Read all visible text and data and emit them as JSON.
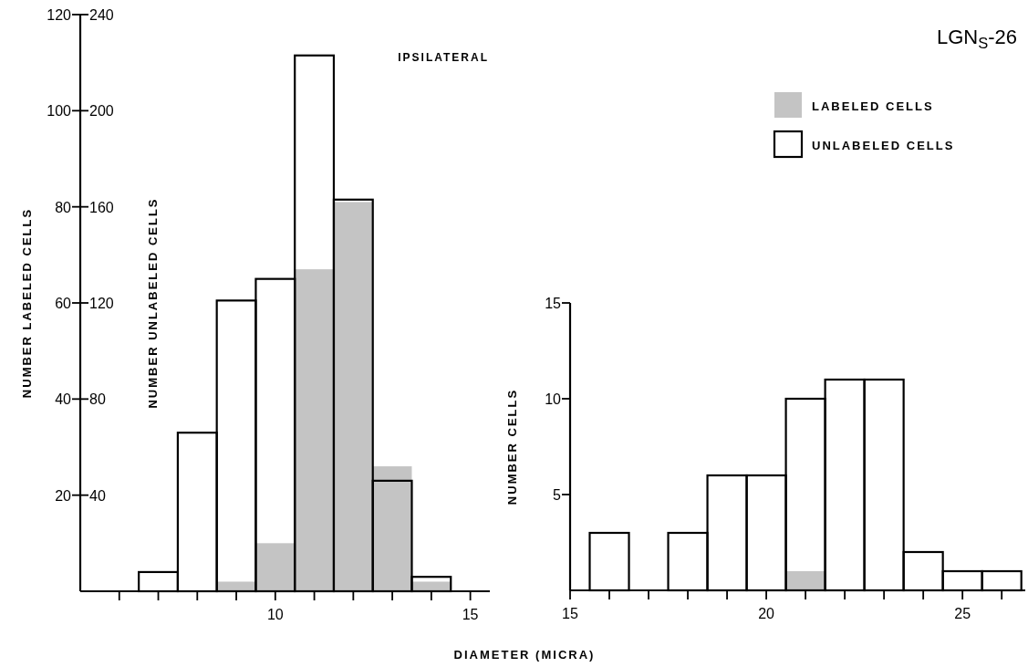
{
  "chart_data": [
    {
      "type": "histogram",
      "title": "IPSILATERAL",
      "xlabel": "DIAMETER (MICRA)",
      "ylabel": "NUMBER LABELED CELLS",
      "y2label": "NUMBER UNLABELED CELLS",
      "bins": [
        6.5,
        7.5,
        8.5,
        9.5,
        10.5,
        11.5,
        12.5,
        13.5,
        14.5
      ],
      "series": [
        {
          "color": "#c4c4c4",
          "values": [
            0,
            0,
            2,
            10,
            67,
            81,
            26,
            2
          ]
        },
        {
          "color": "#000000",
          "axis": "y2",
          "values": [
            8,
            66,
            121,
            130,
            223,
            163,
            46,
            6
          ]
        }
      ],
      "xlim": [
        5,
        15.5
      ],
      "xticks": [
        {
          "value": 6,
          "label": null
        },
        {
          "value": 7,
          "label": null
        },
        {
          "value": 8,
          "label": null
        },
        {
          "value": 9,
          "label": null
        },
        10,
        {
          "value": 11,
          "label": null
        },
        {
          "value": 12,
          "label": null
        },
        {
          "value": 13,
          "label": null
        },
        {
          "value": 14,
          "label": null
        },
        15
      ],
      "ylim": [
        0,
        120
      ],
      "yticks": [
        20,
        40,
        60,
        80,
        100,
        120
      ],
      "y2lim": [
        0,
        240
      ],
      "y2ticks": [
        40,
        80,
        120,
        160,
        200,
        240
      ]
    },
    {
      "type": "histogram",
      "title": "LGN$_{S}$-26",
      "ylabel": "NUMBER CELLS",
      "legend": "top right",
      "bins": [
        15.5,
        16.5,
        17.5,
        18.5,
        19.5,
        20.5,
        21.5,
        22.5,
        23.5,
        24.5,
        25.5,
        26.5
      ],
      "series": [
        {
          "name": "LABELED CELLS",
          "color": "#c4c4c4",
          "values": [
            0,
            0,
            0,
            0,
            0,
            1,
            0,
            0,
            0,
            0,
            0
          ]
        },
        {
          "name": "UNLABELED CELLS",
          "color": "#000000",
          "values": [
            3,
            0,
            3,
            6,
            6,
            10,
            11,
            11,
            2,
            1,
            1
          ]
        }
      ],
      "xlim": [
        15,
        26.6
      ],
      "xticks": [
        15,
        {
          "value": 16,
          "label": null
        },
        {
          "value": 17,
          "label": null
        },
        {
          "value": 18,
          "label": null
        },
        {
          "value": 19,
          "label": null
        },
        20,
        {
          "value": 21,
          "label": null
        },
        {
          "value": 22,
          "label": null
        },
        {
          "value": 23,
          "label": null
        },
        {
          "value": 24,
          "label": null
        },
        25,
        {
          "value": 26,
          "label": null
        }
      ],
      "ylim": [
        0,
        15
      ],
      "yticks": [
        5,
        10,
        15
      ]
    }
  ]
}
